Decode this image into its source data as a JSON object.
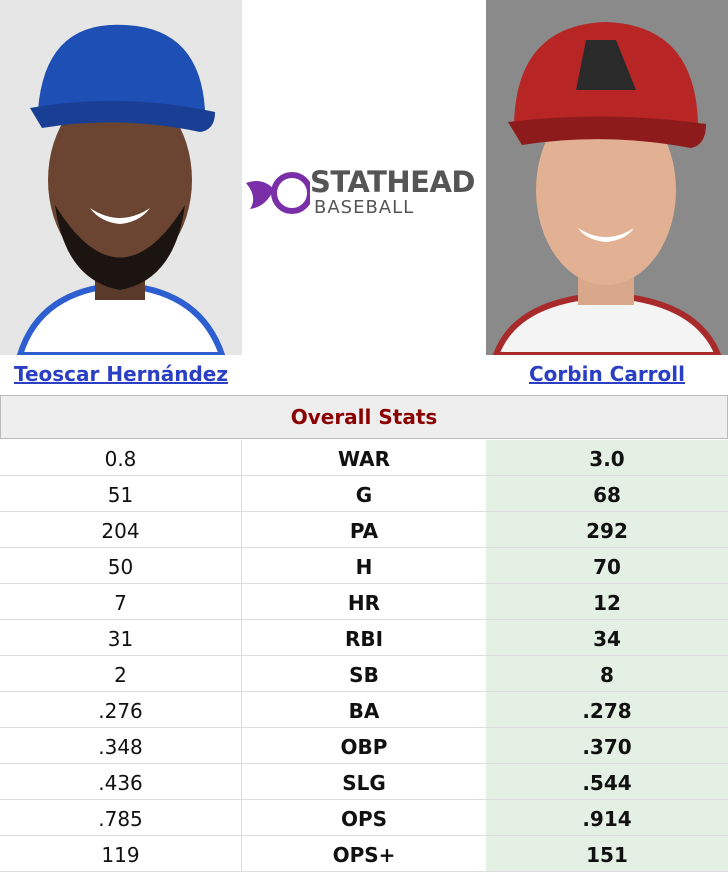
{
  "players": [
    {
      "name": "Teoscar Hernández"
    },
    {
      "name": "Corbin Carroll"
    }
  ],
  "logo": {
    "title": "STATHEAD",
    "subtitle": "BASEBALL"
  },
  "section_title": "Overall Stats",
  "table": {
    "rows": [
      [
        "0.8",
        "WAR",
        "3.0"
      ],
      [
        "51",
        "G",
        "68"
      ],
      [
        "204",
        "PA",
        "292"
      ],
      [
        "50",
        "H",
        "70"
      ],
      [
        "7",
        "HR",
        "12"
      ],
      [
        "31",
        "RBI",
        "34"
      ],
      [
        "2",
        "SB",
        "8"
      ],
      [
        ".276",
        "BA",
        ".278"
      ],
      [
        ".348",
        "OBP",
        ".370"
      ],
      [
        ".436",
        "SLG",
        ".544"
      ],
      [
        ".785",
        "OPS",
        ".914"
      ],
      [
        "119",
        "OPS+",
        "151"
      ]
    ]
  }
}
